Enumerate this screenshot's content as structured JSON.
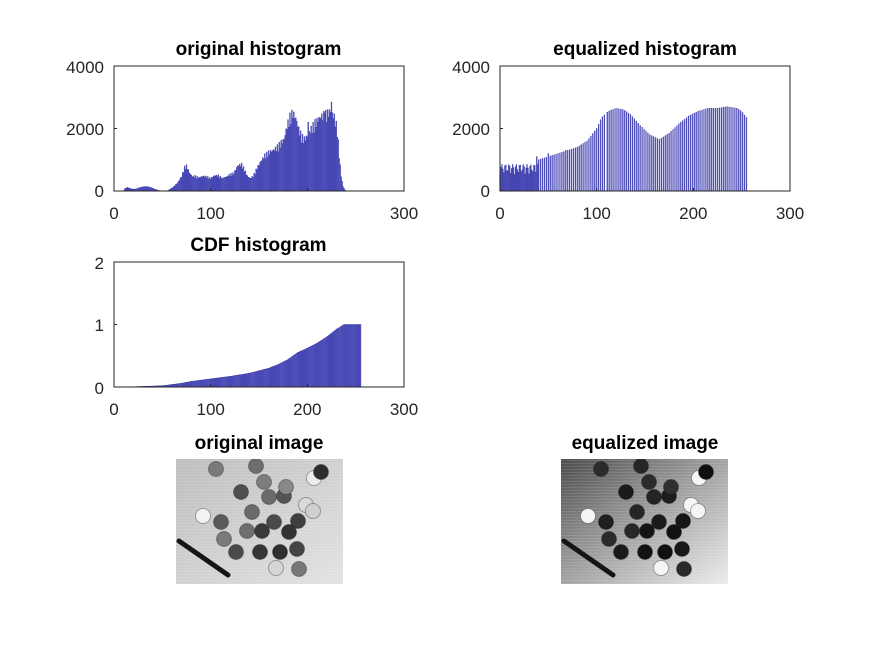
{
  "colors": {
    "bar_edge": "#1f1fa0",
    "bar_fill": "#6e6ec8",
    "axis": "#262626",
    "background": "#ffffff"
  },
  "chart_data": [
    {
      "id": "orig",
      "type": "bar",
      "title": "original histogram",
      "xlim": [
        0,
        300
      ],
      "ylim": [
        0,
        4000
      ],
      "xticks": [
        "0",
        "100",
        "300"
      ],
      "xtick_values": [
        0,
        100,
        300
      ],
      "yticks": [
        "0",
        "2000",
        "4000"
      ],
      "ytick_values": [
        0,
        2000,
        4000
      ],
      "grid": false,
      "series": [
        {
          "profile": [
            [
              0,
              0
            ],
            [
              10,
              0
            ],
            [
              11,
              80
            ],
            [
              14,
              120
            ],
            [
              18,
              70
            ],
            [
              22,
              60
            ],
            [
              26,
              110
            ],
            [
              30,
              140
            ],
            [
              34,
              150
            ],
            [
              38,
              120
            ],
            [
              42,
              60
            ],
            [
              46,
              20
            ],
            [
              50,
              0
            ],
            [
              55,
              0
            ],
            [
              58,
              60
            ],
            [
              62,
              150
            ],
            [
              66,
              280
            ],
            [
              70,
              500
            ],
            [
              73,
              800
            ],
            [
              75,
              850
            ],
            [
              78,
              620
            ],
            [
              81,
              480
            ],
            [
              84,
              500
            ],
            [
              88,
              450
            ],
            [
              92,
              500
            ],
            [
              96,
              480
            ],
            [
              100,
              420
            ],
            [
              104,
              520
            ],
            [
              108,
              520
            ],
            [
              112,
              430
            ],
            [
              116,
              470
            ],
            [
              120,
              560
            ],
            [
              124,
              600
            ],
            [
              128,
              850
            ],
            [
              132,
              900
            ],
            [
              135,
              720
            ],
            [
              138,
              500
            ],
            [
              141,
              420
            ],
            [
              144,
              500
            ],
            [
              148,
              780
            ],
            [
              152,
              1000
            ],
            [
              156,
              1200
            ],
            [
              160,
              1300
            ],
            [
              164,
              1360
            ],
            [
              168,
              1450
            ],
            [
              172,
              1600
            ],
            [
              176,
              1750
            ],
            [
              179,
              2200
            ],
            [
              182,
              2500
            ],
            [
              185,
              2650
            ],
            [
              188,
              2450
            ],
            [
              191,
              2100
            ],
            [
              194,
              1850
            ],
            [
              197,
              1750
            ],
            [
              200,
              1850
            ],
            [
              204,
              2100
            ],
            [
              208,
              2300
            ],
            [
              212,
              2450
            ],
            [
              216,
              2550
            ],
            [
              220,
              2600
            ],
            [
              224,
              2700
            ],
            [
              228,
              2500
            ],
            [
              231,
              2100
            ],
            [
              233,
              1200
            ],
            [
              235,
              500
            ],
            [
              237,
              150
            ],
            [
              239,
              30
            ],
            [
              241,
              0
            ],
            [
              255,
              0
            ]
          ],
          "spikes": [
            [
              225,
              2850
            ],
            [
              218,
              2500
            ],
            [
              201,
              2200
            ]
          ]
        }
      ]
    },
    {
      "id": "eq",
      "type": "bar",
      "title": "equalized histogram",
      "xlim": [
        0,
        300
      ],
      "ylim": [
        0,
        4000
      ],
      "xticks": [
        "0",
        "100",
        "200",
        "300"
      ],
      "xtick_values": [
        0,
        100,
        200,
        300
      ],
      "yticks": [
        "0",
        "2000",
        "4000"
      ],
      "ytick_values": [
        0,
        2000,
        4000
      ],
      "grid": false,
      "series": [
        {
          "envelope": [
            [
              0,
              850
            ],
            [
              20,
              900
            ],
            [
              40,
              1000
            ],
            [
              50,
              1100
            ],
            [
              60,
              1200
            ],
            [
              70,
              1300
            ],
            [
              80,
              1400
            ],
            [
              90,
              1600
            ],
            [
              100,
              2000
            ],
            [
              105,
              2350
            ],
            [
              112,
              2550
            ],
            [
              120,
              2650
            ],
            [
              128,
              2600
            ],
            [
              135,
              2450
            ],
            [
              145,
              2100
            ],
            [
              155,
              1800
            ],
            [
              165,
              1650
            ],
            [
              175,
              1850
            ],
            [
              185,
              2150
            ],
            [
              195,
              2400
            ],
            [
              205,
              2550
            ],
            [
              215,
              2650
            ],
            [
              225,
              2650
            ],
            [
              235,
              2700
            ],
            [
              245,
              2650
            ],
            [
              250,
              2550
            ],
            [
              255,
              2350
            ]
          ],
          "spacing_dense_until": 40,
          "dense_bar_height": 850,
          "spikes": [
            [
              38,
              1100
            ],
            [
              43,
              1450
            ],
            [
              50,
              1200
            ],
            [
              55,
              1000
            ],
            [
              63,
              1250
            ],
            [
              68,
              1300
            ],
            [
              250,
              2800
            ],
            [
              254,
              1600
            ],
            [
              256,
              1800
            ]
          ]
        }
      ]
    },
    {
      "id": "cdf",
      "type": "area",
      "title": "CDF histogram",
      "xlim": [
        0,
        300
      ],
      "ylim": [
        0,
        2
      ],
      "xticks": [
        "0",
        "100",
        "200",
        "300"
      ],
      "xtick_values": [
        0,
        100,
        200,
        300
      ],
      "yticks": [
        "0",
        "1",
        "2"
      ],
      "ytick_values": [
        0,
        1,
        2
      ],
      "grid": false,
      "series": [
        {
          "profile": [
            [
              0,
              0
            ],
            [
              10,
              0.0
            ],
            [
              30,
              0.01
            ],
            [
              50,
              0.02
            ],
            [
              60,
              0.04
            ],
            [
              70,
              0.06
            ],
            [
              80,
              0.09
            ],
            [
              100,
              0.13
            ],
            [
              120,
              0.17
            ],
            [
              140,
              0.22
            ],
            [
              160,
              0.3
            ],
            [
              170,
              0.36
            ],
            [
              180,
              0.44
            ],
            [
              190,
              0.55
            ],
            [
              200,
              0.62
            ],
            [
              210,
              0.7
            ],
            [
              220,
              0.8
            ],
            [
              230,
              0.92
            ],
            [
              238,
              1.0
            ],
            [
              255,
              1.0
            ]
          ]
        }
      ]
    }
  ],
  "images": [
    {
      "id": "orig_img",
      "title": "original image"
    },
    {
      "id": "eq_img",
      "title": "equalized image"
    }
  ]
}
